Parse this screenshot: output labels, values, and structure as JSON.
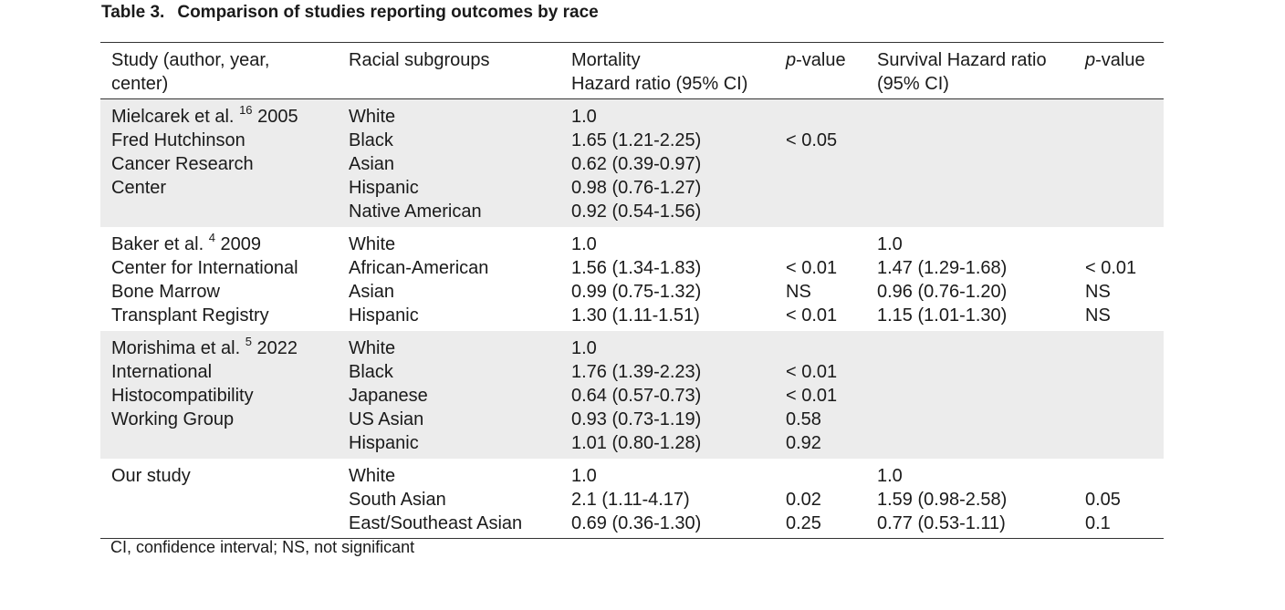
{
  "caption": {
    "number": "Table 3.",
    "title": "Comparison of studies reporting outcomes by race"
  },
  "headers": {
    "study": [
      "Study (author, year,",
      "center)"
    ],
    "subgroups": "Racial subgroups",
    "mortality": [
      "Mortality",
      "Hazard ratio (95% CI)"
    ],
    "p1_italic": "p",
    "p1_rest": "-value",
    "survival": [
      "Survival Hazard ratio",
      "(95% CI)"
    ],
    "p2_italic": "p",
    "p2_rest": "-value"
  },
  "studies": [
    {
      "author": "Mielcarek et al.",
      "ref": "16",
      "year": " 2005",
      "center_lines": [
        "Fred Hutchinson",
        "Cancer Research",
        "Center"
      ],
      "subgroups": [
        "White",
        "Black",
        "Asian",
        "Hispanic",
        "Native American"
      ],
      "mortality_hr": [
        "1.0",
        "1.65 (1.21-2.25)",
        "0.62 (0.39-0.97)",
        "0.98 (0.76-1.27)",
        "0.92 (0.54-1.56)"
      ],
      "p_mortality": [
        "",
        "< 0.05",
        "",
        "",
        ""
      ],
      "survival_hr": [
        "",
        "",
        "",
        "",
        ""
      ],
      "p_survival": [
        "",
        "",
        "",
        "",
        ""
      ]
    },
    {
      "author": "Baker et al.",
      "ref": "4",
      "year": " 2009",
      "center_lines": [
        "Center for International",
        "Bone Marrow",
        "Transplant Registry"
      ],
      "subgroups": [
        "White",
        "African-American",
        "Asian",
        "Hispanic"
      ],
      "mortality_hr": [
        "1.0",
        "1.56 (1.34-1.83)",
        "0.99 (0.75-1.32)",
        "1.30 (1.11-1.51)"
      ],
      "p_mortality": [
        "",
        "< 0.01",
        "NS",
        "< 0.01"
      ],
      "survival_hr": [
        "1.0",
        "1.47 (1.29-1.68)",
        "0.96 (0.76-1.20)",
        "1.15 (1.01-1.30)"
      ],
      "p_survival": [
        "",
        "< 0.01",
        "NS",
        "NS"
      ]
    },
    {
      "author": "Morishima et al.",
      "ref": "5",
      "year": " 2022",
      "center_lines": [
        "International",
        "Histocompatibility",
        "Working Group"
      ],
      "subgroups": [
        "White",
        "Black",
        "Japanese",
        "US Asian",
        "Hispanic"
      ],
      "mortality_hr": [
        "1.0",
        "1.76 (1.39-2.23)",
        "0.64 (0.57-0.73)",
        "0.93 (0.73-1.19)",
        "1.01 (0.80-1.28)"
      ],
      "p_mortality": [
        "",
        "< 0.01",
        "< 0.01",
        "0.58",
        "0.92"
      ],
      "survival_hr": [
        "",
        "",
        "",
        "",
        ""
      ],
      "p_survival": [
        "",
        "",
        "",
        "",
        ""
      ]
    },
    {
      "author": "Our study",
      "ref": "",
      "year": "",
      "center_lines": [],
      "subgroups": [
        "White",
        "South Asian",
        "East/Southeast Asian"
      ],
      "mortality_hr": [
        "1.0",
        "2.1 (1.11-4.17)",
        "0.69 (0.36-1.30)"
      ],
      "p_mortality": [
        "",
        "0.02",
        "0.25"
      ],
      "survival_hr": [
        "1.0",
        "1.59 (0.98-2.58)",
        "0.77 (0.53-1.11)"
      ],
      "p_survival": [
        "",
        "0.05",
        "0.1"
      ]
    }
  ],
  "footnote": "CI, confidence interval; NS, not significant"
}
